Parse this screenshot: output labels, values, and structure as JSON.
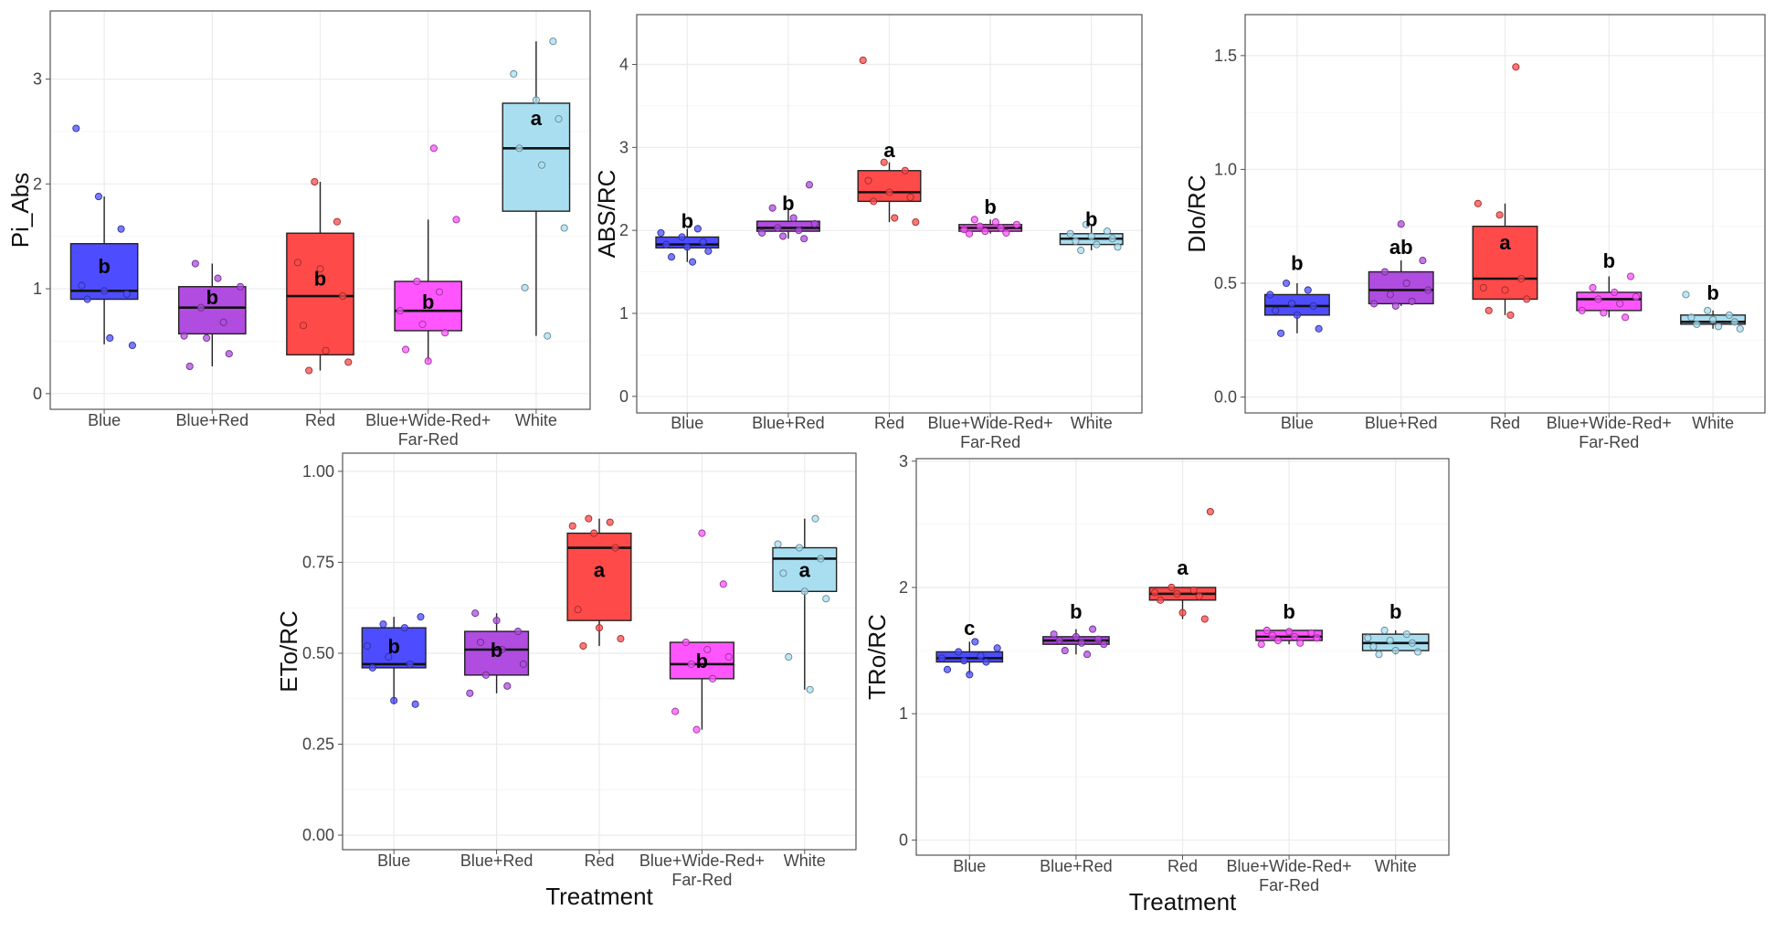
{
  "colors": {
    "Blue": "#4d4dff",
    "Blue+Red": "#b04ce0",
    "Red": "#ff4a4a",
    "Blue+Wide-Red+Far-Red": "#ff55ff",
    "White": "#a9def0"
  },
  "chart_data": [
    {
      "type": "box",
      "ylabel": "Pi_Abs",
      "xlabel": "",
      "ylim": [
        -0.15,
        3.65
      ],
      "yticks": [
        0,
        1,
        2,
        3
      ],
      "categories": [
        "Blue",
        "Blue+Red",
        "Red",
        "Blue+Wide-Red+Far-Red",
        "White"
      ],
      "category_labels": [
        [
          "Blue"
        ],
        [
          "Blue+Red"
        ],
        [
          "Red"
        ],
        [
          "Blue+Wide-Red+",
          "Far-Red"
        ],
        [
          "White"
        ]
      ],
      "grid": true,
      "boxes": [
        {
          "q1": 0.9,
          "median": 0.98,
          "q3": 1.43,
          "whisker_low": 0.47,
          "whisker_high": 1.88,
          "letter": "b",
          "letter_y": 1.22,
          "points": [
            2.53,
            1.88,
            1.57,
            1.03,
            0.98,
            0.95,
            0.9,
            0.53,
            0.46
          ]
        },
        {
          "q1": 0.57,
          "median": 0.82,
          "q3": 1.02,
          "whisker_low": 0.26,
          "whisker_high": 1.24,
          "letter": "b",
          "letter_y": 0.92,
          "points": [
            1.24,
            1.1,
            1.02,
            0.82,
            0.68,
            0.55,
            0.53,
            0.38,
            0.26
          ]
        },
        {
          "q1": 0.37,
          "median": 0.93,
          "q3": 1.53,
          "whisker_low": 0.22,
          "whisker_high": 2.02,
          "letter": "b",
          "letter_y": 1.1,
          "points": [
            2.02,
            1.64,
            1.25,
            1.19,
            0.93,
            0.65,
            0.41,
            0.3,
            0.22
          ]
        },
        {
          "q1": 0.6,
          "median": 0.79,
          "q3": 1.07,
          "whisker_low": 0.31,
          "whisker_high": 1.66,
          "letter": "b",
          "letter_y": 0.88,
          "points": [
            2.34,
            1.66,
            1.07,
            0.97,
            0.79,
            0.66,
            0.58,
            0.42,
            0.31
          ]
        },
        {
          "q1": 1.74,
          "median": 2.34,
          "q3": 2.77,
          "whisker_low": 0.55,
          "whisker_high": 3.36,
          "letter": "a",
          "letter_y": 2.63,
          "points": [
            3.36,
            3.05,
            2.8,
            2.62,
            2.34,
            2.18,
            1.58,
            1.01,
            0.55
          ]
        }
      ]
    },
    {
      "type": "box",
      "ylabel": "ABS/RC",
      "xlabel": "",
      "ylim": [
        -0.2,
        4.6
      ],
      "yticks": [
        0,
        1,
        2,
        3,
        4
      ],
      "categories": [
        "Blue",
        "Blue+Red",
        "Red",
        "Blue+Wide-Red+Far-Red",
        "White"
      ],
      "category_labels": [
        [
          "Blue"
        ],
        [
          "Blue+Red"
        ],
        [
          "Red"
        ],
        [
          "Blue+Wide-Red+",
          "Far-Red"
        ],
        [
          "White"
        ]
      ],
      "grid": true,
      "boxes": [
        {
          "q1": 1.79,
          "median": 1.83,
          "q3": 1.92,
          "whisker_low": 1.62,
          "whisker_high": 2.02,
          "letter": "b",
          "letter_y": 2.12,
          "points": [
            2.02,
            1.97,
            1.92,
            1.86,
            1.83,
            1.8,
            1.75,
            1.68,
            1.62
          ]
        },
        {
          "q1": 1.99,
          "median": 2.03,
          "q3": 2.11,
          "whisker_low": 1.9,
          "whisker_high": 2.27,
          "letter": "b",
          "letter_y": 2.33,
          "points": [
            2.55,
            2.27,
            2.15,
            2.08,
            2.03,
            2.0,
            1.97,
            1.93,
            1.9
          ]
        },
        {
          "q1": 2.35,
          "median": 2.46,
          "q3": 2.72,
          "whisker_low": 2.1,
          "whisker_high": 2.82,
          "letter": "a",
          "letter_y": 2.97,
          "points": [
            4.05,
            2.82,
            2.72,
            2.6,
            2.46,
            2.4,
            2.35,
            2.15,
            2.1
          ]
        },
        {
          "q1": 1.99,
          "median": 2.03,
          "q3": 2.07,
          "whisker_low": 1.96,
          "whisker_high": 2.13,
          "letter": "b",
          "letter_y": 2.29,
          "points": [
            2.13,
            2.1,
            2.07,
            2.05,
            2.03,
            2.01,
            1.99,
            1.97,
            1.96
          ]
        },
        {
          "q1": 1.83,
          "median": 1.9,
          "q3": 1.96,
          "whisker_low": 1.76,
          "whisker_high": 2.07,
          "letter": "b",
          "letter_y": 2.14,
          "points": [
            2.07,
            1.99,
            1.96,
            1.93,
            1.9,
            1.87,
            1.83,
            1.8,
            1.76
          ]
        }
      ]
    },
    {
      "type": "box",
      "ylabel": "DIo/RC",
      "xlabel": "",
      "ylim": [
        -0.07,
        1.68
      ],
      "yticks": [
        0.0,
        0.5,
        1.0,
        1.5
      ],
      "ytick_labels": [
        "0.0",
        "0.5",
        "1.0",
        "1.5"
      ],
      "categories": [
        "Blue",
        "Blue+Red",
        "Red",
        "Blue+Wide-Red+Far-Red",
        "White"
      ],
      "category_labels": [
        [
          "Blue"
        ],
        [
          "Blue+Red"
        ],
        [
          "Red"
        ],
        [
          "Blue+Wide-Red+",
          "Far-Red"
        ],
        [
          "White"
        ]
      ],
      "grid": true,
      "boxes": [
        {
          "q1": 0.36,
          "median": 0.4,
          "q3": 0.45,
          "whisker_low": 0.28,
          "whisker_high": 0.5,
          "letter": "b",
          "letter_y": 0.59,
          "points": [
            0.5,
            0.47,
            0.45,
            0.41,
            0.4,
            0.38,
            0.36,
            0.3,
            0.28
          ]
        },
        {
          "q1": 0.41,
          "median": 0.47,
          "q3": 0.55,
          "whisker_low": 0.4,
          "whisker_high": 0.6,
          "letter": "ab",
          "letter_y": 0.66,
          "points": [
            0.76,
            0.6,
            0.55,
            0.5,
            0.47,
            0.45,
            0.42,
            0.41,
            0.4
          ]
        },
        {
          "q1": 0.43,
          "median": 0.52,
          "q3": 0.75,
          "whisker_low": 0.36,
          "whisker_high": 0.85,
          "letter": "a",
          "letter_y": 0.68,
          "points": [
            1.45,
            0.85,
            0.8,
            0.52,
            0.48,
            0.47,
            0.43,
            0.38,
            0.36
          ]
        },
        {
          "q1": 0.38,
          "median": 0.43,
          "q3": 0.46,
          "whisker_low": 0.35,
          "whisker_high": 0.53,
          "letter": "b",
          "letter_y": 0.6,
          "points": [
            0.53,
            0.48,
            0.46,
            0.44,
            0.43,
            0.41,
            0.38,
            0.37,
            0.35
          ]
        },
        {
          "q1": 0.32,
          "median": 0.33,
          "q3": 0.36,
          "whisker_low": 0.3,
          "whisker_high": 0.38,
          "letter": "b",
          "letter_y": 0.46,
          "points": [
            0.45,
            0.38,
            0.36,
            0.35,
            0.34,
            0.33,
            0.32,
            0.31,
            0.3
          ]
        }
      ]
    },
    {
      "type": "box",
      "ylabel": "ETo/RC",
      "xlabel": "Treatment",
      "ylim": [
        -0.04,
        1.05
      ],
      "yticks": [
        0.0,
        0.25,
        0.5,
        0.75,
        1.0
      ],
      "ytick_labels": [
        "0.00",
        "0.25",
        "0.50",
        "0.75",
        "1.00"
      ],
      "categories": [
        "Blue",
        "Blue+Red",
        "Red",
        "Blue+Wide-Red+Far-Red",
        "White"
      ],
      "category_labels": [
        [
          "Blue"
        ],
        [
          "Blue+Red"
        ],
        [
          "Red"
        ],
        [
          "Blue+Wide-Red+",
          "Far-Red"
        ],
        [
          "White"
        ]
      ],
      "grid": true,
      "boxes": [
        {
          "q1": 0.46,
          "median": 0.47,
          "q3": 0.57,
          "whisker_low": 0.36,
          "whisker_high": 0.6,
          "letter": "b",
          "letter_y": 0.52,
          "points": [
            0.6,
            0.58,
            0.57,
            0.52,
            0.49,
            0.47,
            0.46,
            0.37,
            0.36
          ]
        },
        {
          "q1": 0.44,
          "median": 0.51,
          "q3": 0.56,
          "whisker_low": 0.39,
          "whisker_high": 0.61,
          "letter": "b",
          "letter_y": 0.51,
          "points": [
            0.61,
            0.59,
            0.56,
            0.53,
            0.51,
            0.47,
            0.44,
            0.41,
            0.39
          ]
        },
        {
          "q1": 0.59,
          "median": 0.79,
          "q3": 0.83,
          "whisker_low": 0.52,
          "whisker_high": 0.87,
          "letter": "a",
          "letter_y": 0.73,
          "points": [
            0.87,
            0.86,
            0.85,
            0.83,
            0.79,
            0.62,
            0.57,
            0.54,
            0.52
          ]
        },
        {
          "q1": 0.43,
          "median": 0.47,
          "q3": 0.53,
          "whisker_low": 0.29,
          "whisker_high": 0.53,
          "letter": "b",
          "letter_y": 0.48,
          "points": [
            0.83,
            0.69,
            0.53,
            0.51,
            0.49,
            0.47,
            0.43,
            0.34,
            0.29
          ]
        },
        {
          "q1": 0.67,
          "median": 0.76,
          "q3": 0.79,
          "whisker_low": 0.4,
          "whisker_high": 0.87,
          "letter": "a",
          "letter_y": 0.73,
          "points": [
            0.87,
            0.8,
            0.79,
            0.76,
            0.72,
            0.67,
            0.65,
            0.49,
            0.4
          ]
        }
      ]
    },
    {
      "type": "box",
      "ylabel": "TRo/RC",
      "xlabel": "Treatment",
      "ylim": [
        -0.12,
        3.02
      ],
      "yticks": [
        0,
        1,
        2,
        3
      ],
      "categories": [
        "Blue",
        "Blue+Red",
        "Red",
        "Blue+Wide-Red+Far-Red",
        "White"
      ],
      "category_labels": [
        [
          "Blue"
        ],
        [
          "Blue+Red"
        ],
        [
          "Red"
        ],
        [
          "Blue+Wide-Red+",
          "Far-Red"
        ],
        [
          "White"
        ]
      ],
      "grid": true,
      "boxes": [
        {
          "q1": 1.41,
          "median": 1.44,
          "q3": 1.49,
          "whisker_low": 1.31,
          "whisker_high": 1.57,
          "letter": "c",
          "letter_y": 1.68,
          "points": [
            1.57,
            1.52,
            1.49,
            1.46,
            1.44,
            1.42,
            1.41,
            1.35,
            1.31
          ]
        },
        {
          "q1": 1.55,
          "median": 1.58,
          "q3": 1.61,
          "whisker_low": 1.47,
          "whisker_high": 1.67,
          "letter": "b",
          "letter_y": 1.81,
          "points": [
            1.67,
            1.63,
            1.61,
            1.59,
            1.58,
            1.56,
            1.55,
            1.5,
            1.47
          ]
        },
        {
          "q1": 1.9,
          "median": 1.95,
          "q3": 2.0,
          "whisker_low": 1.75,
          "whisker_high": 2.0,
          "letter": "a",
          "letter_y": 2.16,
          "points": [
            2.6,
            2.0,
            1.98,
            1.96,
            1.95,
            1.93,
            1.9,
            1.8,
            1.75
          ]
        },
        {
          "q1": 1.58,
          "median": 1.61,
          "q3": 1.66,
          "whisker_low": 1.55,
          "whisker_high": 1.66,
          "letter": "b",
          "letter_y": 1.81,
          "points": [
            1.66,
            1.65,
            1.64,
            1.62,
            1.61,
            1.6,
            1.58,
            1.56,
            1.55
          ]
        },
        {
          "q1": 1.5,
          "median": 1.56,
          "q3": 1.63,
          "whisker_low": 1.47,
          "whisker_high": 1.66,
          "letter": "b",
          "letter_y": 1.81,
          "points": [
            1.66,
            1.63,
            1.6,
            1.58,
            1.56,
            1.53,
            1.5,
            1.49,
            1.47
          ]
        }
      ]
    }
  ]
}
